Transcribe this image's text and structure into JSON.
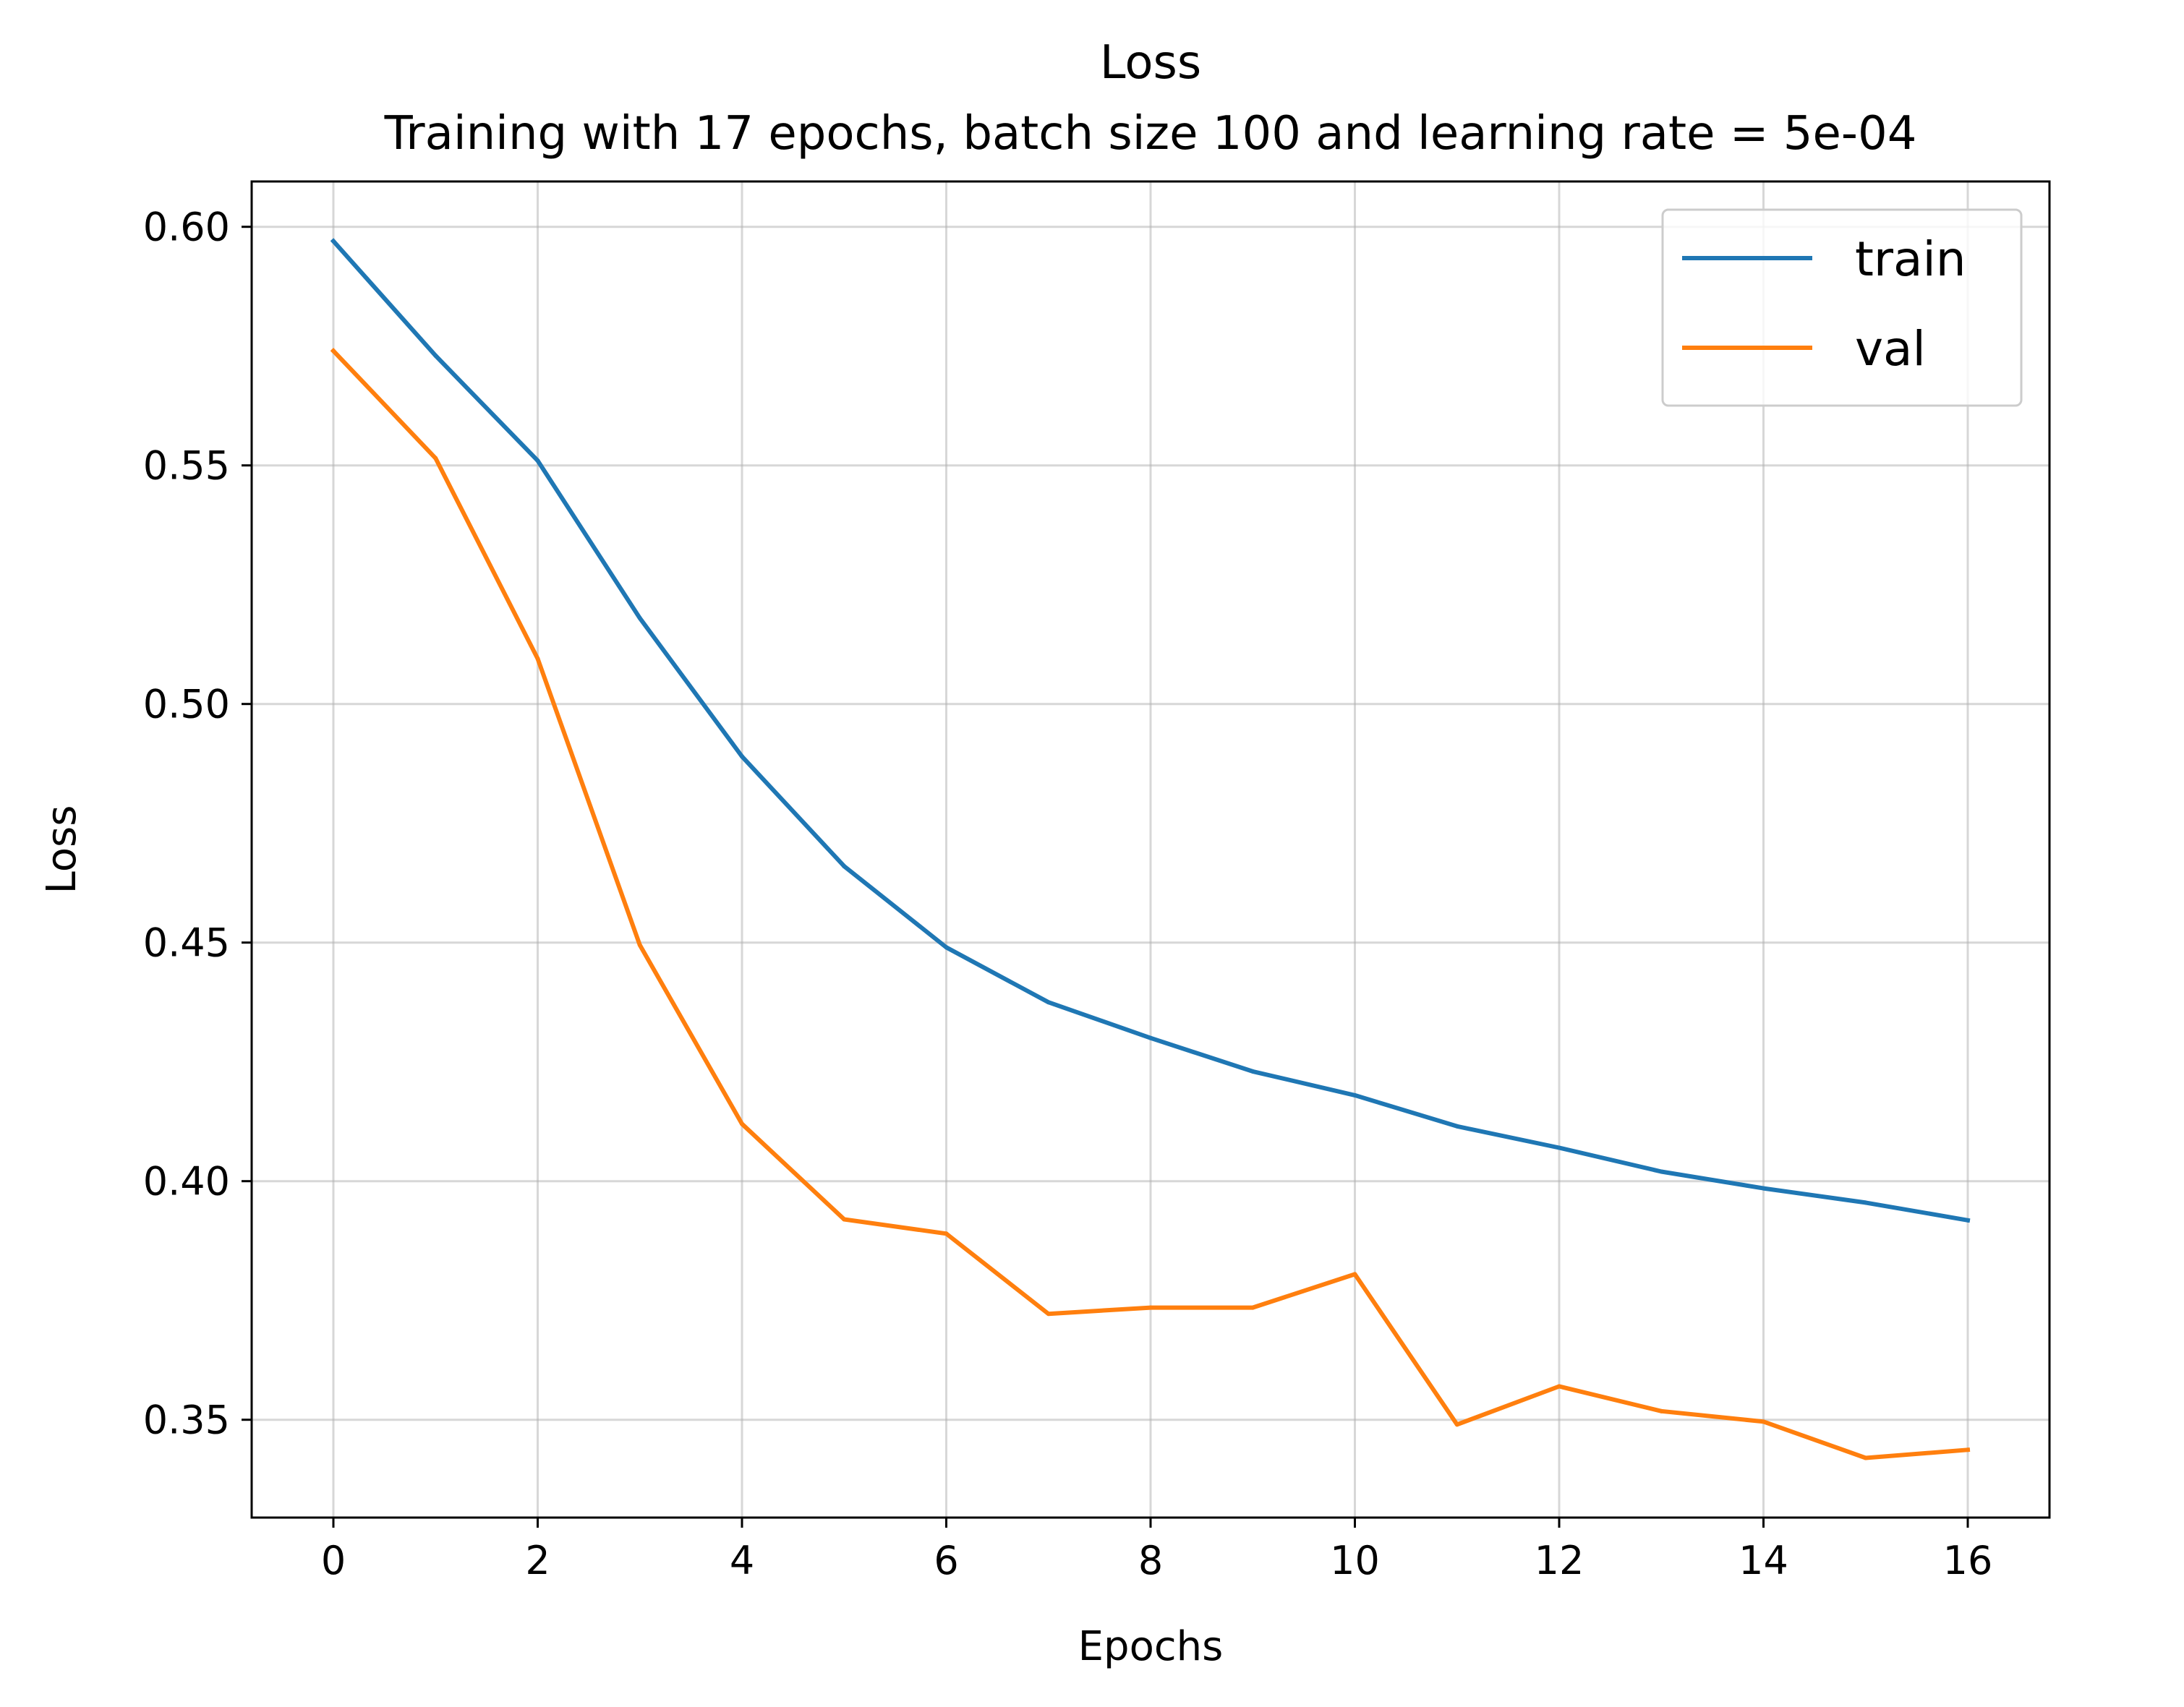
{
  "chart_data": {
    "type": "line",
    "title": "Loss",
    "subtitle": "Training with 17 epochs, batch size 100 and learning rate = 5e-04",
    "xlabel": "Epochs",
    "ylabel": "Loss",
    "xlim": [
      -0.8,
      16.8
    ],
    "ylim": [
      0.3295,
      0.6095
    ],
    "xticks": [
      0,
      2,
      4,
      6,
      8,
      10,
      12,
      14,
      16
    ],
    "xtick_labels": [
      "0",
      "2",
      "4",
      "6",
      "8",
      "10",
      "12",
      "14",
      "16"
    ],
    "yticks": [
      0.35,
      0.4,
      0.45,
      0.5,
      0.55,
      0.6
    ],
    "ytick_labels": [
      "0.35",
      "0.40",
      "0.45",
      "0.50",
      "0.55",
      "0.60"
    ],
    "grid": true,
    "legend_position": "top-right",
    "x": [
      0,
      1,
      2,
      3,
      4,
      5,
      6,
      7,
      8,
      9,
      10,
      11,
      12,
      13,
      14,
      15,
      16
    ],
    "series": [
      {
        "name": "train",
        "color": "#1f77b4",
        "values": [
          0.597,
          0.573,
          0.551,
          0.518,
          0.489,
          0.466,
          0.449,
          0.4375,
          0.43,
          0.423,
          0.418,
          0.4115,
          0.407,
          0.402,
          0.3985,
          0.3955,
          0.3918
        ]
      },
      {
        "name": "val",
        "color": "#ff7f0e",
        "values": [
          0.574,
          0.5515,
          0.5095,
          0.4495,
          0.412,
          0.392,
          0.389,
          0.3722,
          0.3735,
          0.3735,
          0.3805,
          0.349,
          0.357,
          0.3518,
          0.3496,
          0.342,
          0.3437
        ]
      }
    ]
  }
}
